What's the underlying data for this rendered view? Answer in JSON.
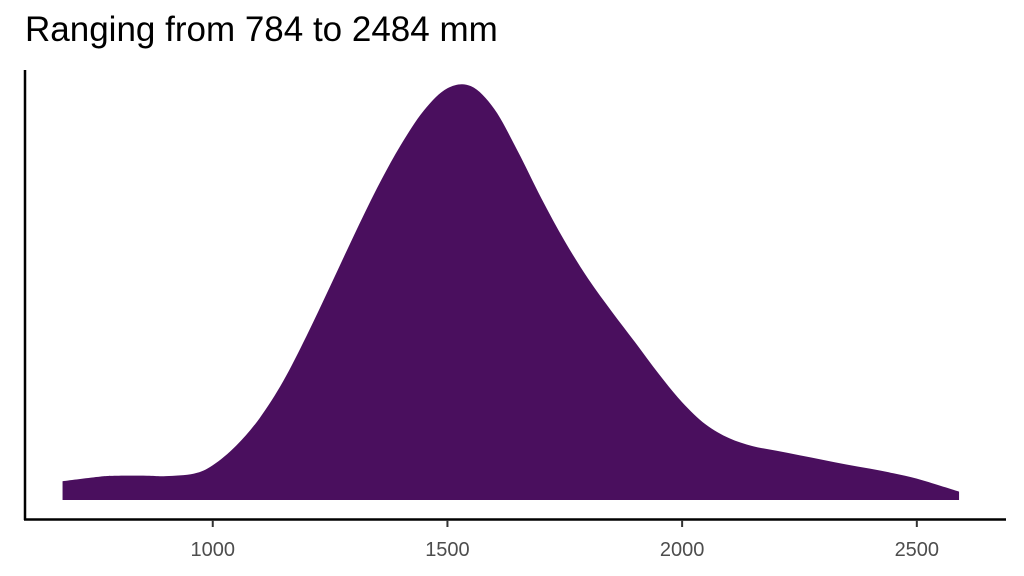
{
  "chart_data": {
    "type": "area",
    "title": "Ranging from 784 to 2484 mm",
    "xlabel": "",
    "ylabel": "",
    "xlim": [
      600,
      2690
    ],
    "ylim": [
      0,
      1
    ],
    "x_ticks": [
      1000,
      1500,
      2000,
      2500
    ],
    "x_tick_labels": [
      "1000",
      "1500",
      "2000",
      "2500"
    ],
    "grid": false,
    "legend": "none",
    "fill_color": "#4a0f5e",
    "series": [
      {
        "x": [
          680,
          760,
          800,
          860,
          900,
          960,
          1000,
          1050,
          1100,
          1150,
          1200,
          1250,
          1300,
          1350,
          1400,
          1450,
          1500,
          1550,
          1600,
          1650,
          1700,
          1750,
          1800,
          1850,
          1900,
          1950,
          2000,
          2050,
          2100,
          2150,
          2200,
          2250,
          2300,
          2350,
          2400,
          2450,
          2500,
          2550,
          2590
        ],
        "y": [
          0.045,
          0.056,
          0.058,
          0.058,
          0.057,
          0.063,
          0.083,
          0.13,
          0.196,
          0.284,
          0.393,
          0.511,
          0.631,
          0.746,
          0.848,
          0.932,
          0.985,
          0.99,
          0.935,
          0.834,
          0.722,
          0.619,
          0.529,
          0.451,
          0.377,
          0.302,
          0.234,
          0.181,
          0.148,
          0.129,
          0.118,
          0.107,
          0.096,
          0.085,
          0.075,
          0.064,
          0.051,
          0.034,
          0.02
        ]
      }
    ]
  }
}
